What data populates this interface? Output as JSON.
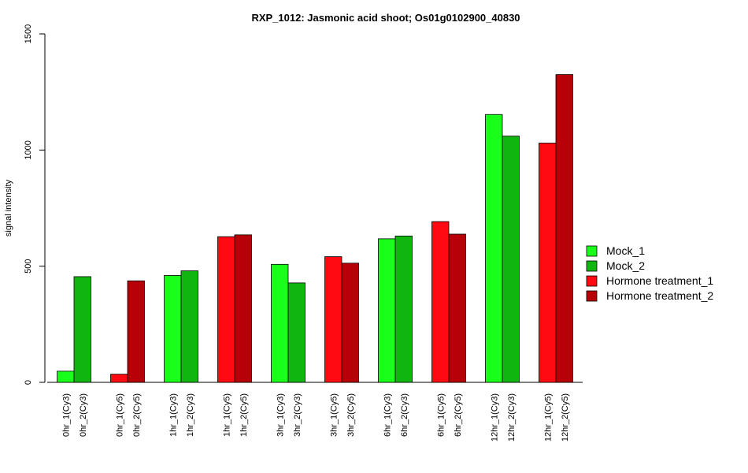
{
  "chart_data": {
    "type": "bar",
    "title": "RXP_1012: Jasmonic acid shoot; Os01g0102900_40830",
    "xlabel": "",
    "ylabel": "signal intensity",
    "ylim": [
      0,
      1500
    ],
    "yticks": [
      0,
      500,
      1000,
      1500
    ],
    "grid": false,
    "legend_position": "right",
    "groups": [
      {
        "categories": [
          "0hr_1(Cy3)",
          "0hr_2(Cy3)"
        ],
        "values": [
          48,
          455
        ],
        "series": [
          "Mock_1",
          "Mock_2"
        ]
      },
      {
        "categories": [
          "0hr_1(Cy5)",
          "0hr_2(Cy5)"
        ],
        "values": [
          35,
          437
        ],
        "series": [
          "Hormone treatment_1",
          "Hormone treatment_2"
        ]
      },
      {
        "categories": [
          "1hr_1(Cy3)",
          "1hr_2(Cy3)"
        ],
        "values": [
          460,
          480
        ],
        "series": [
          "Mock_1",
          "Mock_2"
        ]
      },
      {
        "categories": [
          "1hr_1(Cy5)",
          "1hr_2(Cy5)"
        ],
        "values": [
          627,
          635
        ],
        "series": [
          "Hormone treatment_1",
          "Hormone treatment_2"
        ]
      },
      {
        "categories": [
          "3hr_1(Cy3)",
          "3hr_2(Cy3)"
        ],
        "values": [
          508,
          428
        ],
        "series": [
          "Mock_1",
          "Mock_2"
        ]
      },
      {
        "categories": [
          "3hr_1(Cy5)",
          "3hr_2(Cy5)"
        ],
        "values": [
          541,
          513
        ],
        "series": [
          "Hormone treatment_1",
          "Hormone treatment_2"
        ]
      },
      {
        "categories": [
          "6hr_1(Cy3)",
          "6hr_2(Cy3)"
        ],
        "values": [
          618,
          630
        ],
        "series": [
          "Mock_1",
          "Mock_2"
        ]
      },
      {
        "categories": [
          "6hr_1(Cy5)",
          "6hr_2(Cy5)"
        ],
        "values": [
          692,
          638
        ],
        "series": [
          "Hormone treatment_1",
          "Hormone treatment_2"
        ]
      },
      {
        "categories": [
          "12hr_1(Cy3)",
          "12hr_2(Cy3)"
        ],
        "values": [
          1153,
          1060
        ],
        "series": [
          "Mock_1",
          "Mock_2"
        ]
      },
      {
        "categories": [
          "12hr_1(Cy5)",
          "12hr_2(Cy5)"
        ],
        "values": [
          1030,
          1325
        ],
        "series": [
          "Hormone treatment_1",
          "Hormone treatment_2"
        ]
      }
    ],
    "legend": [
      {
        "name": "Mock_1",
        "color": "#1aff1a"
      },
      {
        "name": "Mock_2",
        "color": "#10b510"
      },
      {
        "name": "Hormone treatment_1",
        "color": "#ff0a12"
      },
      {
        "name": "Hormone treatment_2",
        "color": "#b80008"
      }
    ]
  }
}
